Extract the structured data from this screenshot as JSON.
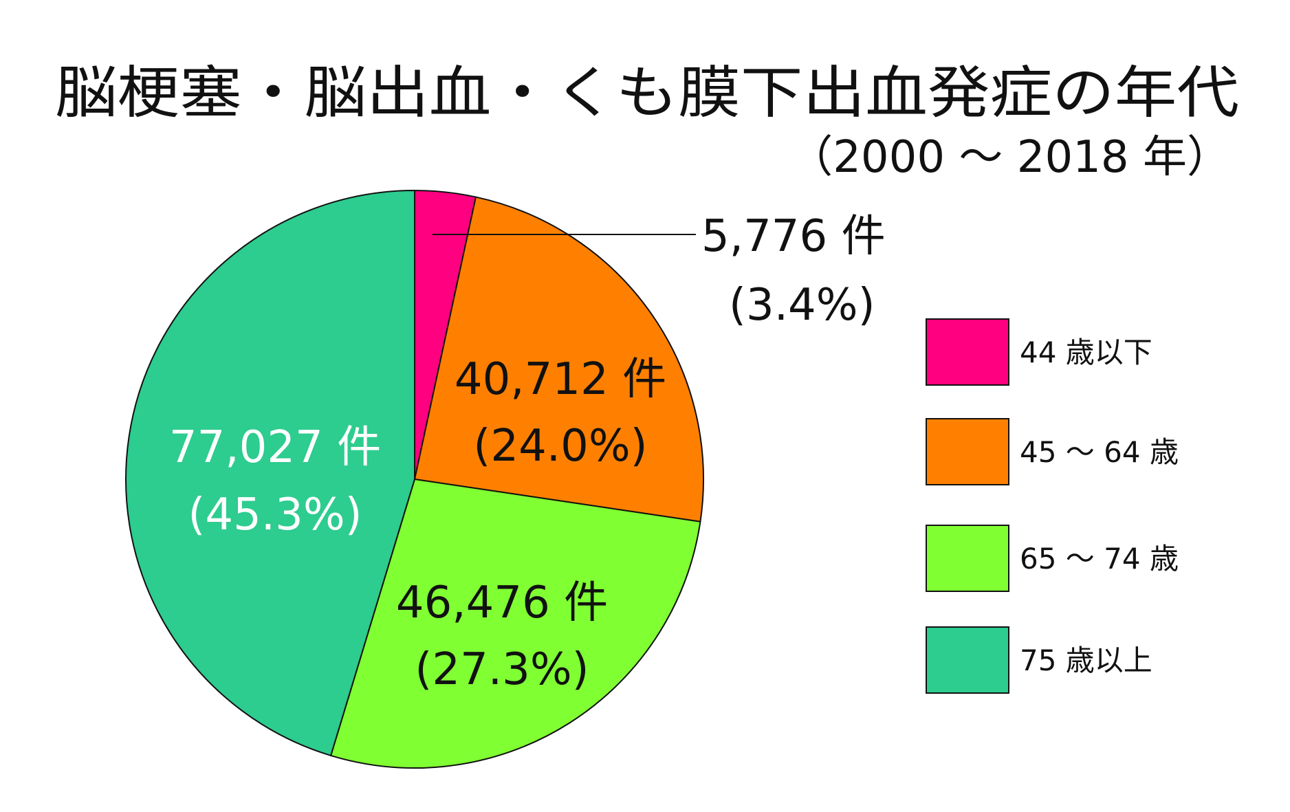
{
  "chart_data": {
    "type": "pie",
    "title": "脳梗塞・脳出血・くも膜下出血発症の年代",
    "subtitle": "（2000 〜 2018 年）",
    "slices": [
      {
        "name": "44 歳以下",
        "value": 5776,
        "value_label": "5,776 件",
        "percent_label": "(3.4%)",
        "color": "#ff0080",
        "label_color": "#111111"
      },
      {
        "name": "45 〜 64 歳",
        "value": 40712,
        "value_label": "40,712 件",
        "percent_label": "(24.0%)",
        "color": "#ff8000",
        "label_color": "#111111"
      },
      {
        "name": "65 〜 74 歳",
        "value": 46476,
        "value_label": "46,476 件",
        "percent_label": "(27.3%)",
        "color": "#80ff33",
        "label_color": "#111111"
      },
      {
        "name": "75 歳以上",
        "value": 77027,
        "value_label": "77,027 件",
        "percent_label": "(45.3%)",
        "color": "#2dcc8f",
        "label_color": "#ffffff"
      }
    ],
    "legend_position": "right",
    "start_angle": "12 o'clock",
    "direction": "clockwise"
  }
}
